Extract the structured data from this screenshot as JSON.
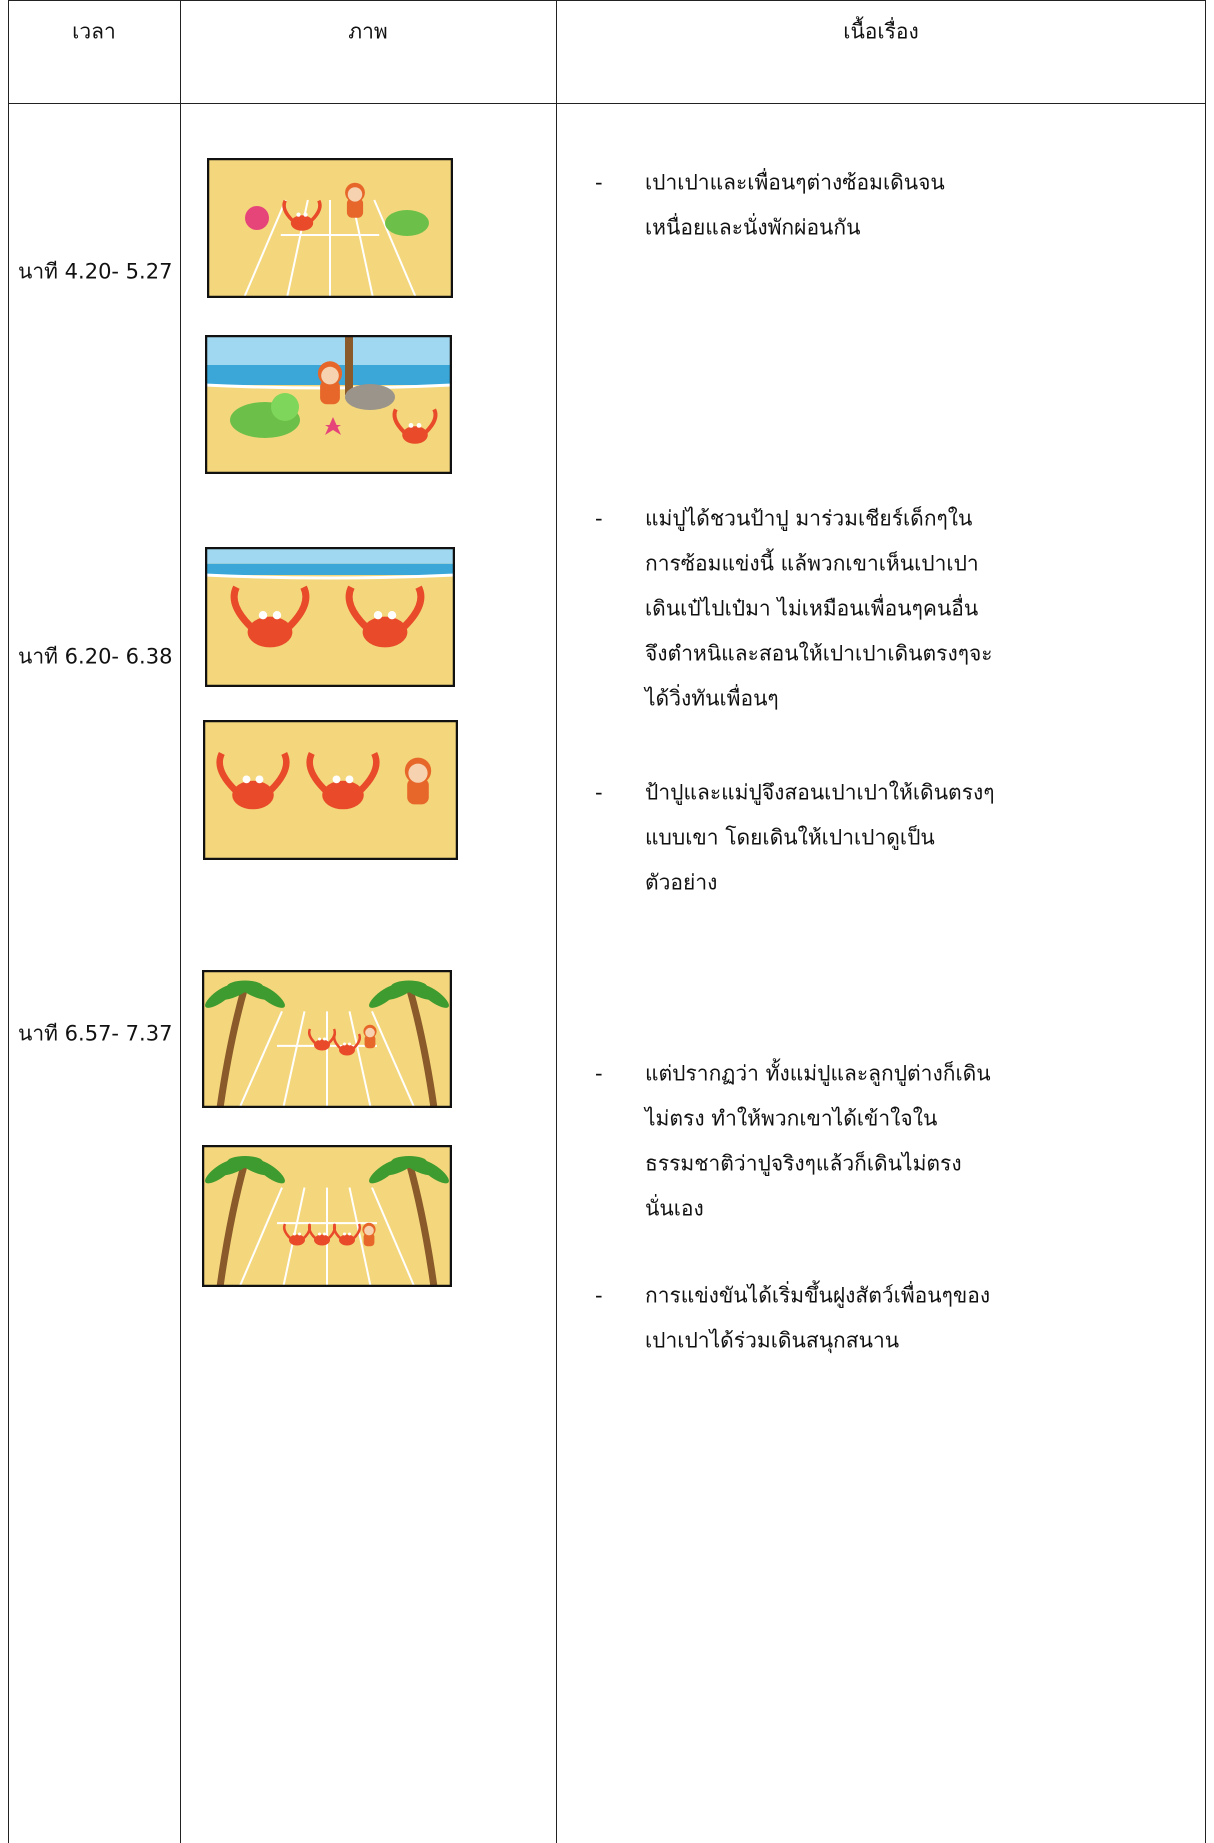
{
  "table": {
    "headers": [
      "เวลา",
      "ภาพ",
      "เนื้อเรื่อง"
    ],
    "times": [
      "นาที 4.20- 5.27",
      "นาที 6.20- 6.38",
      "นาที 6.57- 7.37"
    ],
    "items": [
      {
        "marker": "-",
        "lines": [
          "เปาเปาและเพื่อนๆต่างซ้อมเดินจน",
          "เหนื่อยและนั่งพักผ่อนกัน"
        ]
      },
      {
        "marker": "-",
        "lines": [
          "แม่ปูได้ชวนป้าปู มาร่วมเชียร์เด็กๆใน",
          "การซ้อมแข่งนี้ แล้พวกเขาเห็นเปาเปา",
          "เดินเป๋ไปเป๋มา ไม่เหมือนเพื่อนๆคนอื่น",
          "จึงตำหนิและสอนให้เปาเปาเดินตรงๆจะ",
          "ได้วิ่งทันเพื่อนๆ"
        ]
      },
      {
        "marker": "-",
        "lines": [
          "ป้าปูและแม่ปูจึงสอนเปาเปาให้เดินตรงๆ",
          "แบบเขา โดยเดินให้เปาเปาดูเป็น",
          "ตัวอย่าง"
        ]
      },
      {
        "marker": "-",
        "lines": [
          "แต่ปรากฏว่า ทั้งแม่ปูและลูกปูต่างก็เดิน",
          "ไม่ตรง ทำให้พวกเขาได้เข้าใจใน",
          "ธรรมชาติว่าปูจริงๆแล้วก็เดินไม่ตรง",
          "นั่นเอง"
        ]
      },
      {
        "marker": "-",
        "lines": [
          "การแข่งขันได้เริ่มขึ้นฝูงสัตว์เพื่อนๆของ",
          "เปาเปาได้ร่วมเดินสนุกสนาน"
        ]
      }
    ]
  }
}
